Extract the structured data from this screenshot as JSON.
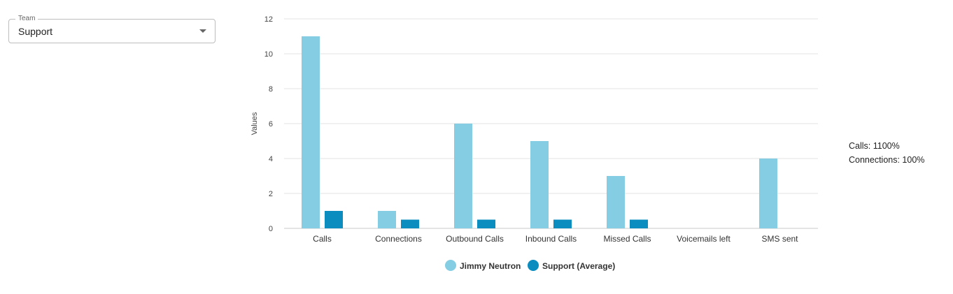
{
  "team_select": {
    "label": "Team",
    "value": "Support"
  },
  "chart_data": {
    "type": "bar",
    "ylabel": "Values",
    "ylim": [
      0,
      12
    ],
    "yticks": [
      0,
      2,
      4,
      6,
      8,
      10,
      12
    ],
    "grid": true,
    "legend_position": "bottom",
    "categories": [
      "Calls",
      "Connections",
      "Outbound Calls",
      "Inbound Calls",
      "Missed Calls",
      "Voicemails left",
      "SMS sent"
    ],
    "series": [
      {
        "name": "Jimmy Neutron",
        "color": "#85cde3",
        "values": [
          11,
          1,
          6,
          5,
          3,
          0,
          4
        ]
      },
      {
        "name": "Support (Average)",
        "color": "#0b8dc0",
        "values": [
          1,
          0.5,
          0.5,
          0.5,
          0.5,
          0,
          0
        ]
      }
    ]
  },
  "side_info": {
    "calls": "Calls: 1100%",
    "connections": "Connections: 100%"
  }
}
